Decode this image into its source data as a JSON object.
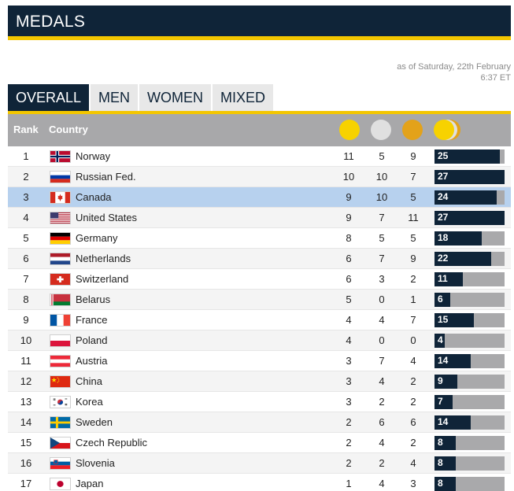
{
  "header": {
    "title": "MEDALS"
  },
  "as_of": {
    "line1": "as of Saturday, 22th February",
    "line2": "6:37 ET"
  },
  "tabs": [
    {
      "label": "OVERALL",
      "active": true
    },
    {
      "label": "MEN",
      "active": false
    },
    {
      "label": "WOMEN",
      "active": false
    },
    {
      "label": "MIXED",
      "active": false
    }
  ],
  "table": {
    "headers": {
      "rank": "Rank",
      "country": "Country"
    },
    "medal_colors": {
      "gold": "#f7d200",
      "silver": "#e0e0e0",
      "bronze": "#e3a21a",
      "total": "#f7d200"
    },
    "max_total": 27,
    "rows": [
      {
        "rank": "1",
        "country": "Norway",
        "flag": "norway-flag",
        "gold": "11",
        "silver": "5",
        "bronze": "9",
        "total": "25"
      },
      {
        "rank": "2",
        "country": "Russian Fed.",
        "flag": "russia-flag",
        "gold": "10",
        "silver": "10",
        "bronze": "7",
        "total": "27"
      },
      {
        "rank": "3",
        "country": "Canada",
        "flag": "canada-flag",
        "gold": "9",
        "silver": "10",
        "bronze": "5",
        "total": "24",
        "highlight": true
      },
      {
        "rank": "4",
        "country": "United States",
        "flag": "usa-flag",
        "gold": "9",
        "silver": "7",
        "bronze": "11",
        "total": "27"
      },
      {
        "rank": "5",
        "country": "Germany",
        "flag": "germany-flag",
        "gold": "8",
        "silver": "5",
        "bronze": "5",
        "total": "18"
      },
      {
        "rank": "6",
        "country": "Netherlands",
        "flag": "netherlands-flag",
        "gold": "6",
        "silver": "7",
        "bronze": "9",
        "total": "22"
      },
      {
        "rank": "7",
        "country": "Switzerland",
        "flag": "switzerland-flag",
        "gold": "6",
        "silver": "3",
        "bronze": "2",
        "total": "11"
      },
      {
        "rank": "8",
        "country": "Belarus",
        "flag": "belarus-flag",
        "gold": "5",
        "silver": "0",
        "bronze": "1",
        "total": "6"
      },
      {
        "rank": "9",
        "country": "France",
        "flag": "france-flag",
        "gold": "4",
        "silver": "4",
        "bronze": "7",
        "total": "15"
      },
      {
        "rank": "10",
        "country": "Poland",
        "flag": "poland-flag",
        "gold": "4",
        "silver": "0",
        "bronze": "0",
        "total": "4"
      },
      {
        "rank": "11",
        "country": "Austria",
        "flag": "austria-flag",
        "gold": "3",
        "silver": "7",
        "bronze": "4",
        "total": "14"
      },
      {
        "rank": "12",
        "country": "China",
        "flag": "china-flag",
        "gold": "3",
        "silver": "4",
        "bronze": "2",
        "total": "9"
      },
      {
        "rank": "13",
        "country": "Korea",
        "flag": "korea-flag",
        "gold": "3",
        "silver": "2",
        "bronze": "2",
        "total": "7"
      },
      {
        "rank": "14",
        "country": "Sweden",
        "flag": "sweden-flag",
        "gold": "2",
        "silver": "6",
        "bronze": "6",
        "total": "14"
      },
      {
        "rank": "15",
        "country": "Czech Republic",
        "flag": "czech-flag",
        "gold": "2",
        "silver": "4",
        "bronze": "2",
        "total": "8"
      },
      {
        "rank": "16",
        "country": "Slovenia",
        "flag": "slovenia-flag",
        "gold": "2",
        "silver": "2",
        "bronze": "4",
        "total": "8"
      },
      {
        "rank": "17",
        "country": "Japan",
        "flag": "japan-flag",
        "gold": "1",
        "silver": "4",
        "bronze": "3",
        "total": "8"
      }
    ]
  }
}
